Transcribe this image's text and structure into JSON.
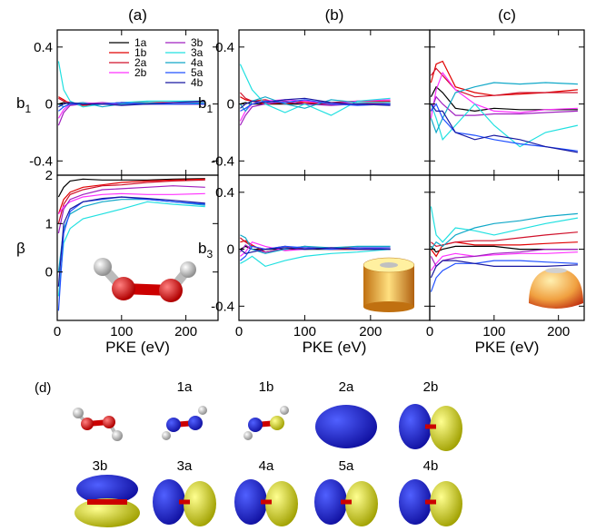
{
  "chart_data": [
    {
      "type": "line",
      "title": "(a)",
      "ylabel": "b",
      "ylabel_sub": "1",
      "xlim": [
        0,
        250
      ],
      "xticks": [
        0,
        100,
        200
      ],
      "xtick_labels": false,
      "ylim": [
        -0.5,
        0.52
      ],
      "yticks": [
        -0.4,
        0,
        0.4
      ],
      "ytick_labels": true,
      "legend": "upper right",
      "x": [
        2,
        10,
        20,
        40,
        70,
        100,
        140,
        180,
        230
      ],
      "series": [
        {
          "name": "1a",
          "color": "#000000",
          "values": [
            0.0,
            0.01,
            0.0,
            0.0,
            0.0,
            0.0,
            0.0,
            0.0,
            0.0
          ]
        },
        {
          "name": "1b",
          "color": "#e00000",
          "values": [
            0.05,
            0.03,
            0.0,
            -0.01,
            0.0,
            0.01,
            0.01,
            0.0,
            0.0
          ]
        },
        {
          "name": "2a",
          "color": "#d0102a",
          "values": [
            0.04,
            0.02,
            0.01,
            0.0,
            0.0,
            0.01,
            0.01,
            0.01,
            0.01
          ]
        },
        {
          "name": "2b",
          "color": "#ff30ff",
          "values": [
            -0.1,
            -0.04,
            0.0,
            0.01,
            0.0,
            0.0,
            0.0,
            0.01,
            0.01
          ]
        },
        {
          "name": "3b",
          "color": "#a020c0",
          "values": [
            -0.15,
            -0.06,
            -0.01,
            0.0,
            0.01,
            0.0,
            0.0,
            0.0,
            0.0
          ]
        },
        {
          "name": "3a",
          "color": "#20e0e0",
          "values": [
            0.3,
            0.1,
            0.02,
            -0.02,
            0.0,
            0.01,
            0.02,
            0.02,
            0.02
          ]
        },
        {
          "name": "4a",
          "color": "#10a8c8",
          "values": [
            0.0,
            -0.02,
            0.0,
            0.01,
            -0.02,
            0.0,
            0.01,
            0.0,
            0.01
          ]
        },
        {
          "name": "5a",
          "color": "#2050ff",
          "values": [
            -0.05,
            -0.02,
            0.0,
            0.0,
            0.0,
            0.01,
            0.0,
            0.0,
            0.0
          ]
        },
        {
          "name": "4b",
          "color": "#1818a0",
          "values": [
            -0.02,
            0.0,
            0.01,
            0.0,
            0.0,
            -0.01,
            0.0,
            0.01,
            0.02
          ]
        }
      ]
    },
    {
      "type": "line",
      "ylabel": "β",
      "xlabel": "PKE (eV)",
      "xlim": [
        0,
        250
      ],
      "xticks": [
        0,
        100,
        200
      ],
      "xtick_labels": true,
      "ylim": [
        -1,
        2
      ],
      "yticks": [
        0,
        1,
        2
      ],
      "ytick_labels": true,
      "x": [
        2,
        10,
        20,
        40,
        70,
        100,
        140,
        180,
        230
      ],
      "series": [
        {
          "color": "#000000",
          "values": [
            1.55,
            1.75,
            1.88,
            1.92,
            1.9,
            1.9,
            1.9,
            1.92,
            1.93
          ]
        },
        {
          "color": "#e00000",
          "values": [
            1.2,
            1.5,
            1.65,
            1.75,
            1.8,
            1.85,
            1.88,
            1.9,
            1.92
          ]
        },
        {
          "color": "#d0102a",
          "values": [
            1.0,
            1.4,
            1.6,
            1.7,
            1.78,
            1.8,
            1.85,
            1.88,
            1.9
          ]
        },
        {
          "color": "#ff30ff",
          "values": [
            1.2,
            1.35,
            1.45,
            1.55,
            1.6,
            1.62,
            1.6,
            1.6,
            1.62
          ]
        },
        {
          "color": "#a020c0",
          "values": [
            0.8,
            1.3,
            1.5,
            1.6,
            1.7,
            1.72,
            1.75,
            1.78,
            1.75
          ]
        },
        {
          "color": "#20e0e0",
          "values": [
            -0.5,
            0.6,
            0.9,
            1.1,
            1.2,
            1.3,
            1.45,
            1.4,
            1.35
          ]
        },
        {
          "color": "#10a8c8",
          "values": [
            0.0,
            0.9,
            1.2,
            1.35,
            1.45,
            1.5,
            1.5,
            1.45,
            1.38
          ]
        },
        {
          "color": "#2050ff",
          "values": [
            -0.8,
            0.8,
            1.25,
            1.45,
            1.5,
            1.55,
            1.5,
            1.45,
            1.4
          ]
        },
        {
          "color": "#1818a0",
          "values": [
            -0.3,
            1.0,
            1.3,
            1.45,
            1.52,
            1.55,
            1.52,
            1.48,
            1.42
          ]
        }
      ]
    },
    {
      "type": "line",
      "title": "(b)",
      "ylabel": "b",
      "ylabel_sub": "1",
      "xlim": [
        0,
        290
      ],
      "xticks": [
        0,
        100,
        200
      ],
      "xtick_labels": false,
      "ylim": [
        -0.5,
        0.52
      ],
      "yticks": [
        -0.4,
        0,
        0.4
      ],
      "ytick_labels": true,
      "x": [
        2,
        10,
        20,
        40,
        70,
        100,
        140,
        180,
        230
      ],
      "series": [
        {
          "color": "#000000",
          "values": [
            0.0,
            0.01,
            0.0,
            0.0,
            0.0,
            0.0,
            0.0,
            0.0,
            0.0
          ]
        },
        {
          "color": "#e00000",
          "values": [
            0.05,
            0.03,
            0.02,
            0.0,
            0.01,
            0.01,
            0.0,
            0.0,
            0.01
          ]
        },
        {
          "color": "#d0102a",
          "values": [
            0.08,
            0.04,
            0.02,
            0.03,
            0.0,
            0.02,
            0.01,
            0.02,
            0.02
          ]
        },
        {
          "color": "#ff30ff",
          "values": [
            -0.12,
            -0.05,
            0.0,
            0.02,
            0.03,
            0.02,
            0.0,
            0.02,
            0.03
          ]
        },
        {
          "color": "#a020c0",
          "values": [
            -0.15,
            -0.08,
            -0.02,
            0.0,
            0.02,
            0.0,
            -0.01,
            0.0,
            0.0
          ]
        },
        {
          "color": "#20e0e0",
          "values": [
            0.28,
            0.2,
            0.1,
            0.0,
            -0.06,
            0.0,
            -0.08,
            0.02,
            0.04
          ]
        },
        {
          "color": "#10a8c8",
          "values": [
            0.0,
            -0.05,
            0.02,
            0.05,
            0.0,
            -0.03,
            0.03,
            0.01,
            0.01
          ]
        },
        {
          "color": "#2050ff",
          "values": [
            -0.05,
            -0.03,
            0.0,
            0.02,
            0.01,
            0.03,
            0.0,
            -0.01,
            0.0
          ]
        },
        {
          "color": "#1818a0",
          "values": [
            -0.03,
            0.0,
            0.02,
            0.01,
            0.03,
            0.04,
            0.01,
            0.0,
            -0.01
          ]
        }
      ]
    },
    {
      "type": "line",
      "ylabel": "b",
      "ylabel_sub": "3",
      "xlabel": "PKE (eV)",
      "xlim": [
        0,
        290
      ],
      "xticks": [
        0,
        100,
        200
      ],
      "xtick_labels": true,
      "ylim": [
        -0.5,
        0.52
      ],
      "yticks": [
        -0.4,
        0,
        0.4
      ],
      "ytick_labels": true,
      "x": [
        2,
        10,
        20,
        40,
        70,
        100,
        140,
        180,
        230
      ],
      "series": [
        {
          "color": "#000000",
          "values": [
            0.0,
            0.02,
            0.0,
            0.0,
            0.0,
            0.0,
            0.0,
            0.0,
            0.0
          ]
        },
        {
          "color": "#e00000",
          "values": [
            0.05,
            0.06,
            0.03,
            -0.02,
            0.0,
            0.01,
            0.0,
            0.0,
            0.0
          ]
        },
        {
          "color": "#d0102a",
          "values": [
            0.08,
            0.05,
            0.02,
            0.0,
            0.02,
            0.0,
            0.01,
            0.01,
            0.01
          ]
        },
        {
          "color": "#ff30ff",
          "values": [
            -0.05,
            -0.02,
            0.05,
            0.02,
            -0.01,
            0.0,
            0.01,
            0.0,
            0.0
          ]
        },
        {
          "color": "#a020c0",
          "values": [
            -0.02,
            0.03,
            0.0,
            -0.02,
            0.0,
            0.02,
            0.0,
            0.01,
            0.0
          ]
        },
        {
          "color": "#20e0e0",
          "values": [
            -0.1,
            -0.08,
            -0.05,
            -0.12,
            -0.08,
            -0.05,
            -0.03,
            -0.02,
            0.0
          ]
        },
        {
          "color": "#10a8c8",
          "values": [
            0.1,
            0.08,
            0.0,
            -0.03,
            0.0,
            0.02,
            0.01,
            0.02,
            0.02
          ]
        },
        {
          "color": "#2050ff",
          "values": [
            -0.08,
            -0.05,
            0.02,
            0.0,
            0.02,
            0.01,
            0.0,
            0.01,
            0.01
          ]
        },
        {
          "color": "#1818a0",
          "values": [
            0.0,
            -0.03,
            -0.02,
            0.0,
            0.01,
            0.0,
            0.01,
            0.0,
            0.0
          ]
        }
      ]
    },
    {
      "type": "line",
      "title": "(c)",
      "xlim": [
        0,
        240
      ],
      "xticks": [
        0,
        100,
        200
      ],
      "xtick_labels": false,
      "ylim": [
        -0.5,
        0.52
      ],
      "yticks": [
        -0.4,
        0,
        0.4
      ],
      "ytick_labels": false,
      "x": [
        2,
        10,
        20,
        40,
        70,
        100,
        140,
        180,
        230
      ],
      "series": [
        {
          "color": "#000000",
          "values": [
            0.05,
            0.12,
            0.08,
            -0.03,
            -0.05,
            -0.03,
            -0.04,
            -0.04,
            -0.04
          ]
        },
        {
          "color": "#e00000",
          "values": [
            0.15,
            0.28,
            0.3,
            0.12,
            0.08,
            0.06,
            0.07,
            0.08,
            0.1
          ]
        },
        {
          "color": "#d0102a",
          "values": [
            0.2,
            0.25,
            0.2,
            0.1,
            0.05,
            0.06,
            0.08,
            0.08,
            0.08
          ]
        },
        {
          "color": "#ff30ff",
          "values": [
            -0.1,
            0.1,
            0.22,
            0.1,
            0.0,
            -0.05,
            -0.06,
            -0.04,
            -0.03
          ]
        },
        {
          "color": "#a020c0",
          "values": [
            -0.05,
            0.05,
            0.0,
            -0.08,
            -0.08,
            -0.07,
            -0.07,
            -0.06,
            -0.05
          ]
        },
        {
          "color": "#20e0e0",
          "values": [
            0.0,
            -0.1,
            -0.25,
            -0.15,
            0.0,
            -0.15,
            -0.3,
            -0.2,
            -0.15
          ]
        },
        {
          "color": "#10a8c8",
          "values": [
            -0.1,
            -0.2,
            -0.1,
            0.08,
            0.12,
            0.15,
            0.14,
            0.15,
            0.14
          ]
        },
        {
          "color": "#2050ff",
          "values": [
            -0.05,
            0.0,
            -0.1,
            -0.2,
            -0.22,
            -0.25,
            -0.28,
            -0.3,
            -0.33
          ]
        },
        {
          "color": "#1818a0",
          "values": [
            0.0,
            -0.05,
            -0.05,
            -0.2,
            -0.25,
            -0.22,
            -0.25,
            -0.3,
            -0.34
          ]
        }
      ]
    },
    {
      "type": "line",
      "xlabel": "PKE (eV)",
      "xlim": [
        0,
        240
      ],
      "xticks": [
        0,
        100,
        200
      ],
      "xtick_labels": true,
      "ylim": [
        -0.5,
        0.52
      ],
      "yticks": [
        -0.4,
        0,
        0.4
      ],
      "ytick_labels": false,
      "x": [
        2,
        10,
        20,
        40,
        70,
        100,
        140,
        180,
        230
      ],
      "series": [
        {
          "color": "#000000",
          "values": [
            0.02,
            -0.02,
            0.0,
            0.02,
            0.02,
            0.02,
            0.0,
            0.0,
            0.0
          ]
        },
        {
          "color": "#e00000",
          "values": [
            0.0,
            -0.05,
            0.03,
            0.05,
            0.03,
            0.03,
            0.03,
            0.04,
            0.05
          ]
        },
        {
          "color": "#d0102a",
          "values": [
            0.05,
            0.02,
            0.03,
            0.05,
            0.06,
            0.06,
            0.08,
            0.1,
            0.12
          ]
        },
        {
          "color": "#ff30ff",
          "values": [
            -0.15,
            -0.1,
            -0.05,
            -0.03,
            -0.05,
            -0.04,
            -0.03,
            -0.03,
            -0.02
          ]
        },
        {
          "color": "#a020c0",
          "values": [
            -0.05,
            -0.12,
            -0.08,
            -0.06,
            -0.05,
            -0.03,
            -0.02,
            0.0,
            0.0
          ]
        },
        {
          "color": "#20e0e0",
          "values": [
            0.3,
            0.1,
            0.05,
            0.15,
            0.13,
            0.1,
            0.14,
            0.18,
            0.22
          ]
        },
        {
          "color": "#10a8c8",
          "values": [
            0.0,
            0.05,
            0.02,
            0.1,
            0.15,
            0.18,
            0.2,
            0.23,
            0.25
          ]
        },
        {
          "color": "#2050ff",
          "values": [
            -0.3,
            -0.2,
            -0.15,
            -0.1,
            -0.1,
            -0.08,
            -0.08,
            -0.09,
            -0.1
          ]
        },
        {
          "color": "#1818a0",
          "values": [
            -0.2,
            -0.12,
            -0.08,
            -0.08,
            -0.1,
            -0.12,
            -0.12,
            -0.12,
            -0.11
          ]
        }
      ]
    }
  ],
  "panel_d": {
    "label": "(d)",
    "orbitals": [
      "1a",
      "1b",
      "2a",
      "2b",
      "3b",
      "3a",
      "4a",
      "5a",
      "4b"
    ]
  }
}
